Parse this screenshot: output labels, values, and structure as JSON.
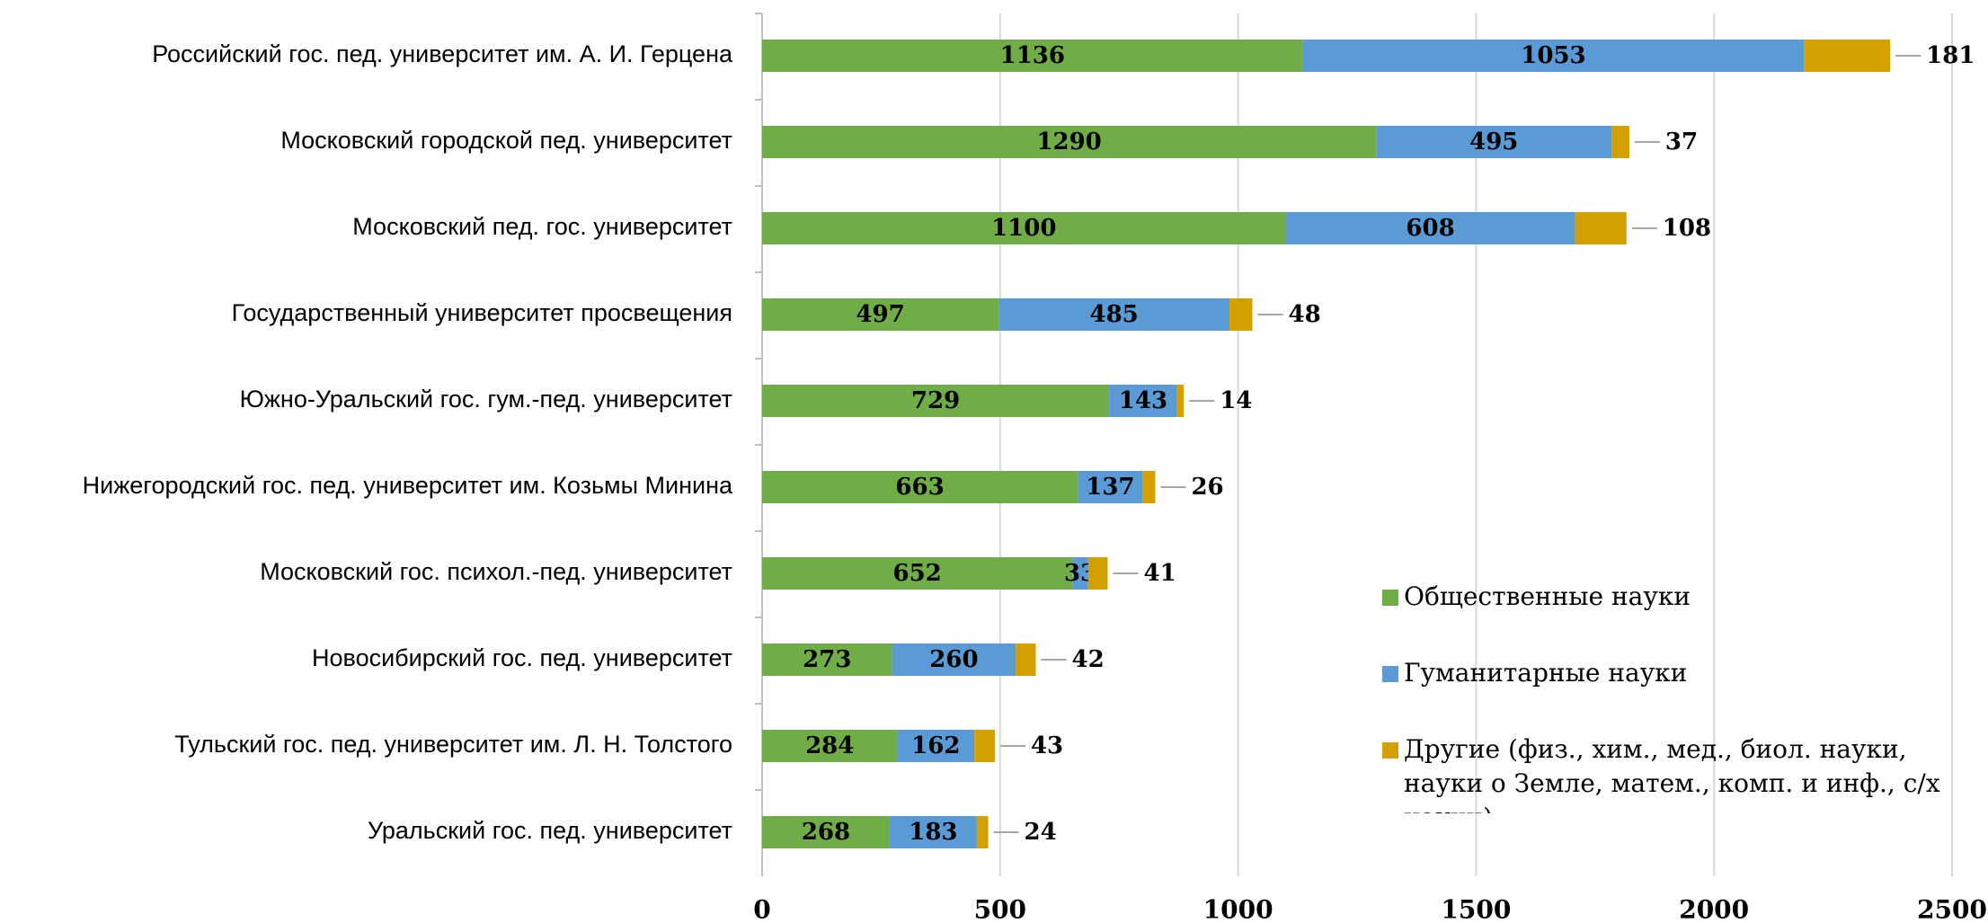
{
  "chart_data": {
    "type": "stacked-barh",
    "categories": [
      "Российский гос. пед. университет им. А. И. Герцена",
      "Московский городской пед. университет",
      "Московский пед. гос. университет",
      "Государственный университет просвещения",
      "Южно-Уральский гос. гум.-пед. университет",
      "Нижегородский гос. пед. университет им. Козьмы Минина",
      "Московский гос. психол.-пед. университет",
      "Новосибирский гос. пед. университет",
      "Тульский гос. пед. университет им. Л. Н. Толстого",
      "Уральский гос. пед. университет"
    ],
    "series": [
      {
        "name": "Общественные науки",
        "color": "#70ad47",
        "values": [
          1136,
          1290,
          1100,
          497,
          729,
          663,
          652,
          273,
          284,
          268
        ]
      },
      {
        "name": "Гуманитарные науки",
        "color": "#5b9bd5",
        "values": [
          1053,
          495,
          608,
          485,
          143,
          137,
          33,
          260,
          162,
          183
        ]
      },
      {
        "name": "Другие (физ., хим., мед., биол. науки, науки о Земле, матем., комп. и инф., с/х науки)",
        "color": "#d49f00",
        "values": [
          181,
          37,
          108,
          48,
          14,
          26,
          41,
          42,
          43,
          24
        ]
      }
    ],
    "xlim": [
      0,
      2500
    ],
    "xticks": [
      0,
      500,
      1000,
      1500,
      2000,
      2500
    ],
    "grid": true
  }
}
